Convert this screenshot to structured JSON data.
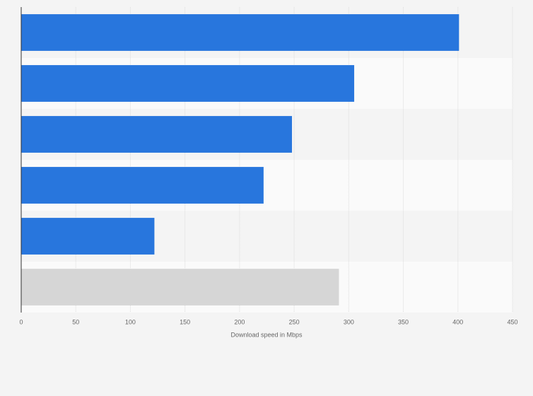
{
  "chart_data": {
    "type": "hbar",
    "categories": [
      null,
      null,
      null,
      null,
      null,
      null
    ],
    "values": [
      401,
      305,
      248,
      222,
      122,
      291
    ],
    "colors": [
      "#2876dd",
      "#2876dd",
      "#2876dd",
      "#2876dd",
      "#2876dd",
      "#d6d6d6"
    ],
    "xlabel": "Download speed in Mbps",
    "xlim": [
      0,
      450
    ],
    "xticks": [
      0,
      50,
      100,
      150,
      200,
      250,
      300,
      350,
      400,
      450
    ],
    "grid": true
  }
}
